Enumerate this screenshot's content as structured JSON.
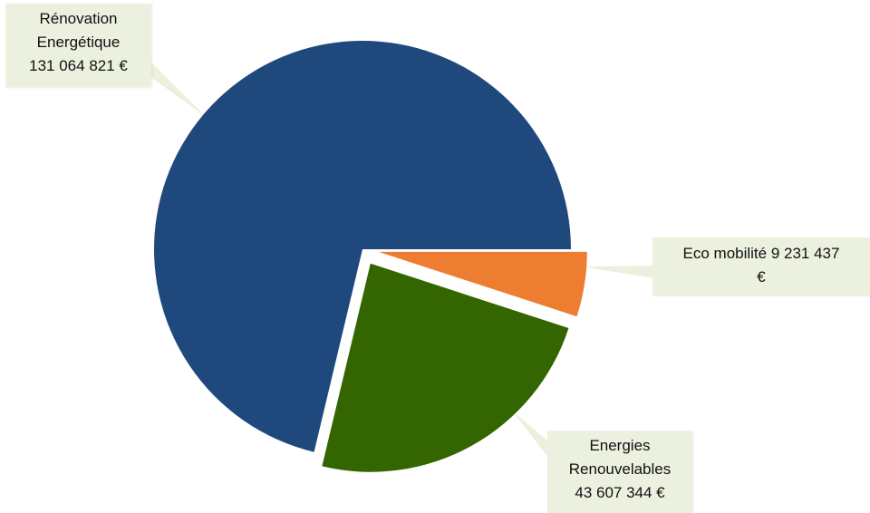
{
  "chart_data": {
    "type": "pie",
    "slices": [
      {
        "label": "Rénovation Energétique",
        "value": 131064821,
        "value_text": "131 064 821 €",
        "color": "#1f497d",
        "exploded": false
      },
      {
        "label": "Eco mobilité",
        "value": 9231437,
        "value_text": "9 231 437 €",
        "color": "#ed7d31",
        "exploded": true
      },
      {
        "label": "Energies Renouvelables",
        "value": 43607344,
        "value_text": "43 607 344 €",
        "color": "#336600",
        "exploded": true
      }
    ],
    "labels": {
      "renovation": {
        "line1": "Rénovation",
        "line2": "Energétique",
        "line3": "131 064 821 €"
      },
      "eco": {
        "line1": "Eco mobilité 9 231 437",
        "line2": "€"
      },
      "enr": {
        "line1": "Energies",
        "line2": "Renouvelables",
        "line3": "43 607 344 €"
      }
    },
    "label_box_color": "#ebf1de",
    "leader_line_color": "#ebf1de",
    "legend": "none"
  }
}
